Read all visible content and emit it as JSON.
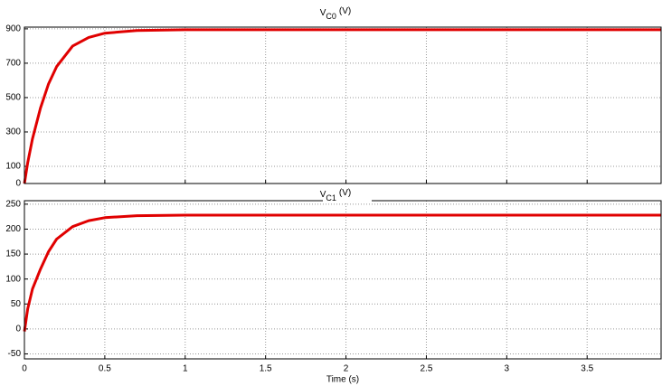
{
  "chart_data": [
    {
      "type": "line",
      "title": "V",
      "title_sub": "C0",
      "title_unit": "(V)",
      "x": [
        0,
        0.02,
        0.05,
        0.1,
        0.15,
        0.2,
        0.3,
        0.4,
        0.5,
        0.7,
        1,
        1.5,
        2,
        3,
        3.96
      ],
      "series": [
        {
          "color": "#e00000",
          "values": [
            0,
            120,
            260,
            440,
            580,
            680,
            800,
            850,
            875,
            890,
            895,
            895,
            895,
            895,
            895
          ]
        }
      ],
      "xlim": [
        0,
        3.96
      ],
      "xticks": [
        0,
        0.5,
        1,
        1.5,
        2,
        2.5,
        3,
        3.5
      ],
      "xtick_labels": false,
      "ylim": [
        0,
        910
      ],
      "yticks": [
        0,
        100,
        300,
        500,
        700,
        900
      ],
      "grid": true
    },
    {
      "type": "line",
      "title": "V",
      "title_sub": "C1",
      "title_unit": "(V)",
      "xlabel": "Time (s)",
      "x": [
        0,
        0.02,
        0.05,
        0.1,
        0.15,
        0.2,
        0.3,
        0.4,
        0.5,
        0.7,
        1,
        1.5,
        2,
        3,
        3.96
      ],
      "series": [
        {
          "color": "#e00000",
          "values": [
            -5,
            40,
            80,
            120,
            155,
            180,
            205,
            217,
            223,
            227,
            228,
            228,
            228,
            228,
            228
          ]
        }
      ],
      "xlim": [
        0,
        3.96
      ],
      "xticks": [
        0,
        0.5,
        1,
        1.5,
        2,
        2.5,
        3,
        3.5
      ],
      "xtick_labels": true,
      "ylim": [
        -60,
        257
      ],
      "yticks": [
        -50,
        0,
        50,
        100,
        150,
        200,
        250
      ],
      "grid": true
    }
  ]
}
